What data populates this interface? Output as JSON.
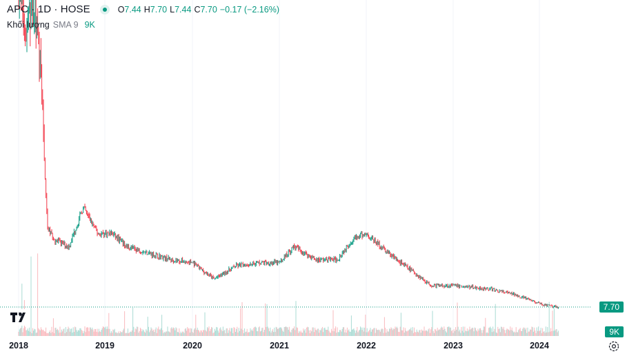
{
  "legend": {
    "symbol": "APC · 1D · HOSE",
    "o_key": "O",
    "o_val": "7.44",
    "h_key": "H",
    "h_val": "7.70",
    "l_key": "L",
    "l_val": "7.44",
    "c_key": "C",
    "c_val": "7.70",
    "change": "−0.17 (−2.16%)"
  },
  "volume_legend": {
    "title": "Khối lượng",
    "sma": "SMA 9",
    "value": "9K"
  },
  "price_tag": "7.70",
  "volume_tag": "9K",
  "colors": {
    "up": "#089981",
    "down": "#f23645",
    "grid": "#f0f3fa"
  },
  "icons": {
    "logo": "tradingview-logo-icon",
    "settings": "gear-icon"
  },
  "chart_data": {
    "type": "candlestick",
    "x_ticks": [
      "2018",
      "2019",
      "2020",
      "2021",
      "2022",
      "2023",
      "2024"
    ],
    "last_close": 7.7,
    "price_path": [
      [
        "2018-01",
        58
      ],
      [
        "2018-02",
        50
      ],
      [
        "2018-03",
        55
      ],
      [
        "2018-04",
        45
      ],
      [
        "2018-05",
        20
      ],
      [
        "2018-06",
        18
      ],
      [
        "2018-08",
        17
      ],
      [
        "2018-10",
        23
      ],
      [
        "2018-12",
        19
      ],
      [
        "2019-02",
        19
      ],
      [
        "2019-04",
        17
      ],
      [
        "2019-07",
        16
      ],
      [
        "2019-10",
        15
      ],
      [
        "2020-01",
        14.5
      ],
      [
        "2020-04",
        12
      ],
      [
        "2020-07",
        14
      ],
      [
        "2020-10",
        14.5
      ],
      [
        "2021-01",
        14.5
      ],
      [
        "2021-03",
        17
      ],
      [
        "2021-06",
        15
      ],
      [
        "2021-09",
        15
      ],
      [
        "2021-11",
        18
      ],
      [
        "2022-01",
        19
      ],
      [
        "2022-04",
        16
      ],
      [
        "2022-07",
        13.5
      ],
      [
        "2022-10",
        11
      ],
      [
        "2023-01",
        11
      ],
      [
        "2023-06",
        10.5
      ],
      [
        "2023-10",
        9.5
      ],
      [
        "2024-01",
        8.2
      ],
      [
        "2024-03",
        7.7
      ]
    ]
  }
}
